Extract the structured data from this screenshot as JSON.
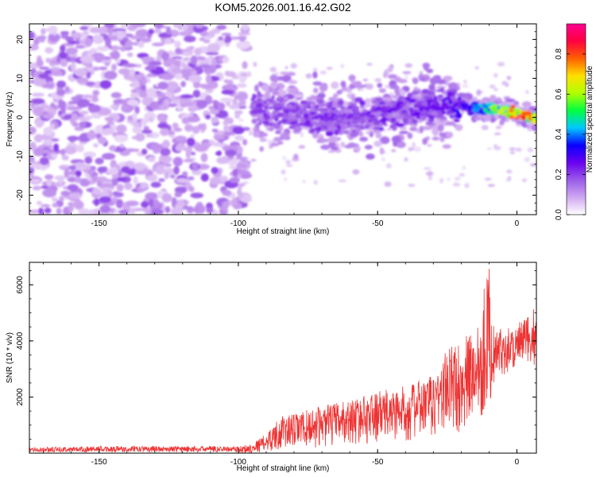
{
  "title": "KOM5.2026.001.16.42.G02",
  "chart_data": [
    {
      "type": "heatmap",
      "title": "KOM5.2026.001.16.42.G02",
      "xlabel": "Height of straight line (km)",
      "ylabel": "Frequency (Hz)",
      "xlim": [
        -175,
        7
      ],
      "ylim": [
        -25,
        24
      ],
      "xticks": [
        -150,
        -100,
        -50,
        0
      ],
      "yticks": [
        20,
        10,
        0,
        -10,
        -20
      ],
      "grid": false,
      "colorbar": {
        "label": "Normalized spectral amplitude",
        "range": [
          0,
          0.95
        ],
        "ticks": [
          0.0,
          0.2,
          0.4,
          0.6,
          0.8
        ],
        "colors": [
          "#ffffff",
          "#cfa8f0",
          "#9a5be8",
          "#6a00f0",
          "#0a00ff",
          "#00c8ff",
          "#00ff40",
          "#b0ff00",
          "#ffe000",
          "#ff6000",
          "#ff0040",
          "#ff0090"
        ]
      },
      "description_of_signal": {
        "noise_region_x": [
          -175,
          -100
        ],
        "track": [
          {
            "x": -95,
            "f": 2,
            "amp": 0.2
          },
          {
            "x": -80,
            "f": 1,
            "amp": 0.22
          },
          {
            "x": -70,
            "f": 0,
            "amp": 0.22
          },
          {
            "x": -60,
            "f": 0,
            "amp": 0.22
          },
          {
            "x": -50,
            "f": 1,
            "amp": 0.23
          },
          {
            "x": -40,
            "f": 2,
            "amp": 0.24
          },
          {
            "x": -30,
            "f": 3,
            "amp": 0.25
          },
          {
            "x": -20,
            "f": 3,
            "amp": 0.3
          },
          {
            "x": -12,
            "f": 2,
            "amp": 0.45
          },
          {
            "x": -5,
            "f": 2,
            "amp": 0.65
          },
          {
            "x": 0,
            "f": 1,
            "amp": 0.9
          },
          {
            "x": 5,
            "f": 0,
            "amp": 0.7
          }
        ]
      }
    },
    {
      "type": "line",
      "title": "",
      "xlabel": "Height of straight line (km)",
      "ylabel": "SNR (10 * v/v)",
      "xlim": [
        -175,
        7
      ],
      "ylim": [
        0,
        6800
      ],
      "xticks": [
        -150,
        -100,
        -50,
        0
      ],
      "yticks": [
        2000,
        4000,
        6000
      ],
      "grid": false,
      "series": [
        {
          "name": "SNR",
          "color": "#ee3333",
          "envelope": {
            "x": [
              -175,
              -150,
              -125,
              -100,
              -95,
              -90,
              -85,
              -80,
              -70,
              -60,
              -50,
              -40,
              -30,
              -25,
              -20,
              -15,
              -10,
              -9,
              -8,
              -5,
              0,
              5,
              7
            ],
            "low": [
              0,
              0,
              0,
              0,
              0,
              50,
              100,
              150,
              200,
              300,
              350,
              400,
              500,
              600,
              700,
              900,
              1500,
              2000,
              2600,
              2800,
              2900,
              3000,
              3200
            ],
            "high": [
              200,
              250,
              250,
              250,
              350,
              700,
              1300,
              1400,
              1700,
              1900,
              2200,
              2400,
              2800,
              3800,
              4000,
              4500,
              6800,
              5000,
              4300,
              4500,
              4600,
              5000,
              5300
            ]
          }
        }
      ]
    }
  ]
}
